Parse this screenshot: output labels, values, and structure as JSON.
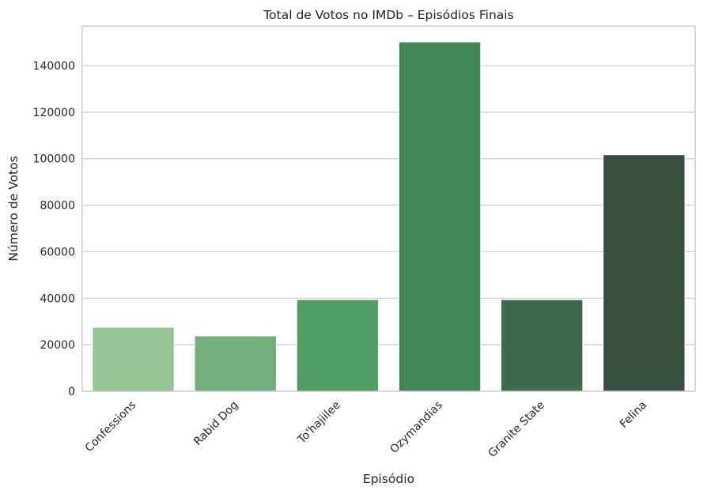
{
  "chart_data": {
    "type": "bar",
    "title": "Total de Votos no IMDb – Episódios Finais",
    "xlabel": "Episódio",
    "ylabel": "Número de Votos",
    "categories": [
      "Confessions",
      "Rabid Dog",
      "To'hajiilee",
      "Ozymandias",
      "Granite State",
      "Felina"
    ],
    "values": [
      27500,
      23800,
      39400,
      150200,
      39400,
      101700
    ],
    "colors": [
      "#93c693",
      "#72af7a",
      "#529e64",
      "#418654",
      "#3b6b4b",
      "#374f3f"
    ],
    "ylim": [
      0,
      157000
    ],
    "yticks": [
      0,
      20000,
      40000,
      60000,
      80000,
      100000,
      120000,
      140000
    ],
    "ytick_labels": [
      "0",
      "20000",
      "40000",
      "60000",
      "80000",
      "100000",
      "120000",
      "140000"
    ],
    "grid": "horizontal",
    "legend": "none"
  }
}
